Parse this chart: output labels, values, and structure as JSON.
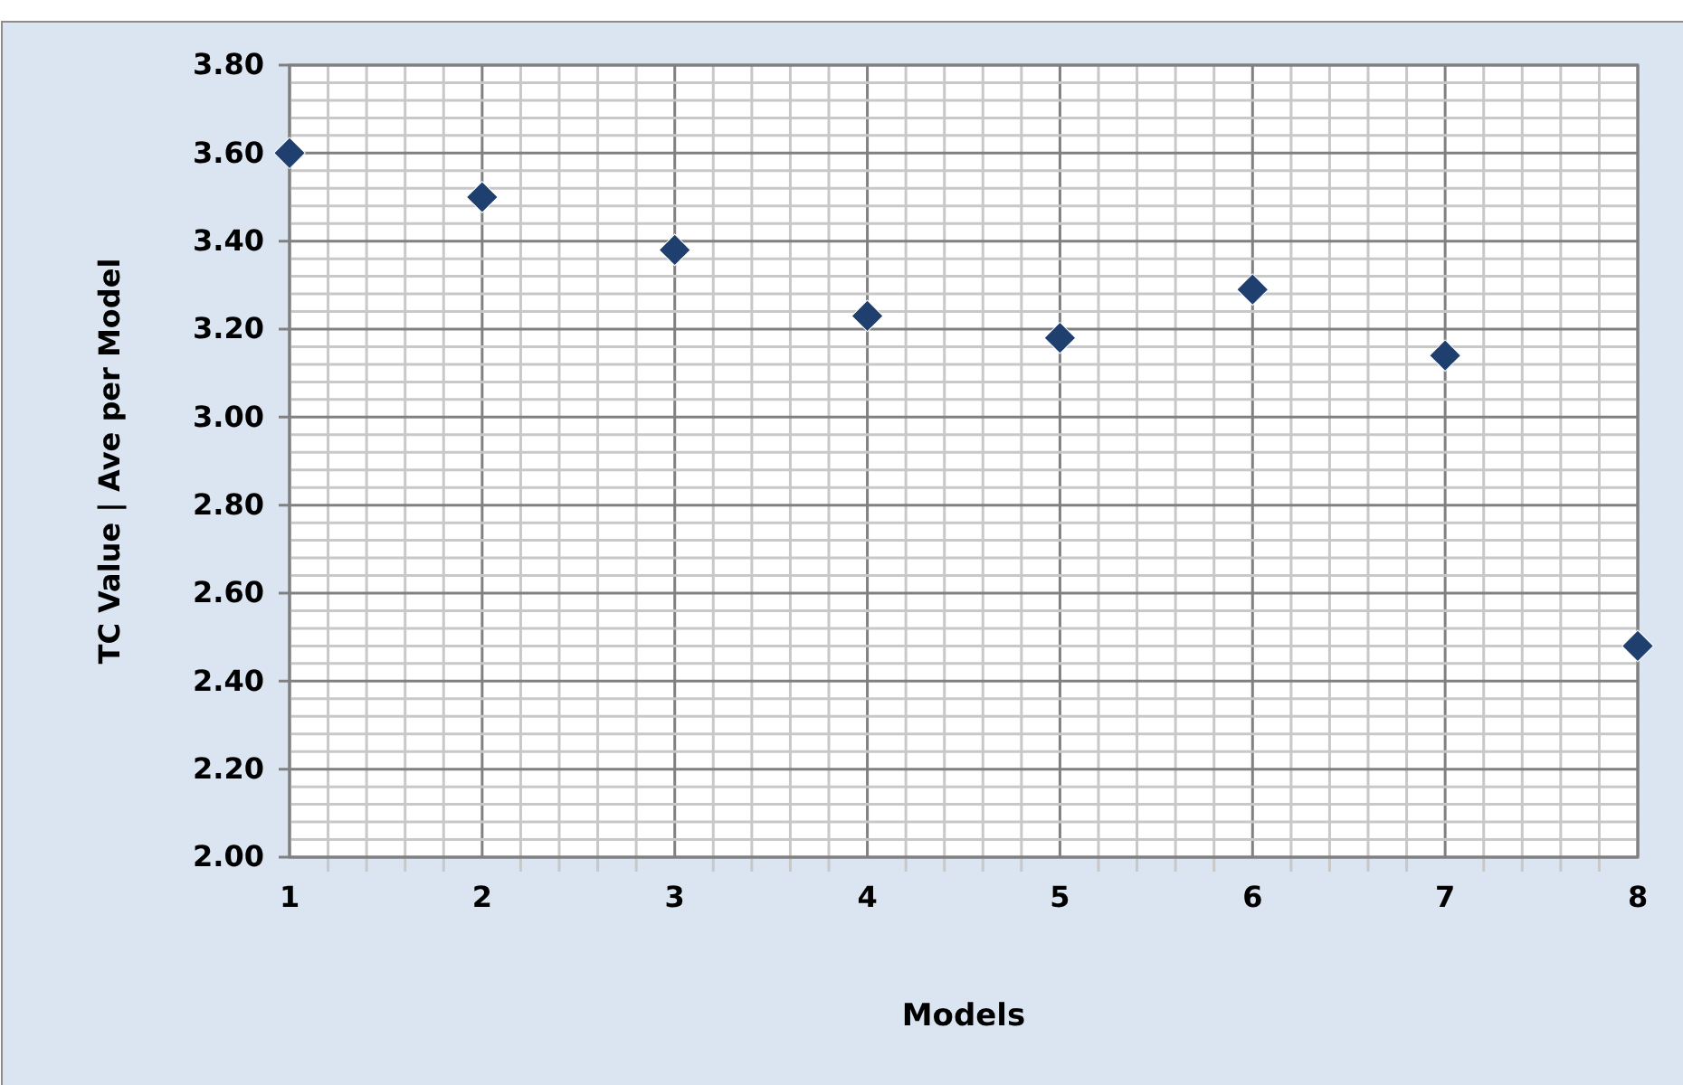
{
  "chart_data": {
    "type": "scatter",
    "xlabel": "Models",
    "ylabel": "TC Value | Ave per Model",
    "x": [
      1,
      2,
      3,
      4,
      5,
      6,
      7,
      8
    ],
    "series": [
      {
        "color": "#1f3f6e",
        "values": [
          3.6,
          3.5,
          3.38,
          3.23,
          3.18,
          3.29,
          3.14,
          2.48
        ]
      }
    ],
    "xlim": [
      1,
      8
    ],
    "xticks": [
      1,
      2,
      3,
      4,
      5,
      6,
      7,
      8
    ],
    "ylim": [
      2,
      3.8
    ],
    "yticks": [
      {
        "value": 2,
        "label": "2.00"
      },
      {
        "value": 2.2,
        "label": "2.20"
      },
      {
        "value": 2.4,
        "label": "2.40"
      },
      {
        "value": 2.6,
        "label": "2.60"
      },
      {
        "value": 2.8,
        "label": "2.80"
      },
      {
        "value": 3,
        "label": "3.00"
      },
      {
        "value": 3.2,
        "label": "3.20"
      },
      {
        "value": 3.4,
        "label": "3.40"
      },
      {
        "value": 3.6,
        "label": "3.60"
      },
      {
        "value": 3.8,
        "label": "3.80"
      }
    ],
    "grid": true,
    "marker": "diamond"
  }
}
